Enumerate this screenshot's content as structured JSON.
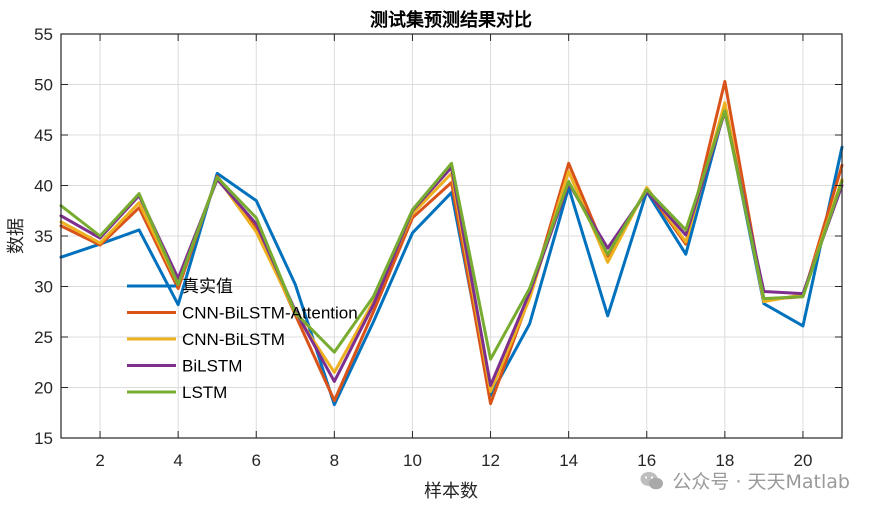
{
  "chart_data": {
    "type": "line",
    "title": "测试集预测结果对比",
    "xlabel": "样本数",
    "ylabel": "数据",
    "xlim": [
      1,
      21
    ],
    "ylim": [
      15,
      55
    ],
    "x_ticks": [
      2,
      4,
      6,
      8,
      10,
      12,
      14,
      16,
      18,
      20
    ],
    "y_ticks": [
      15,
      20,
      25,
      30,
      35,
      40,
      45,
      50,
      55
    ],
    "grid": true,
    "legend_position": "lower-left",
    "x": [
      1,
      2,
      3,
      4,
      5,
      6,
      7,
      8,
      9,
      10,
      11,
      12,
      13,
      14,
      15,
      16,
      17,
      18,
      19,
      20,
      21
    ],
    "series": [
      {
        "name": "真实值",
        "color": "#0072BD",
        "values": [
          32.9,
          34.2,
          35.6,
          28.2,
          41.2,
          38.5,
          30.2,
          18.3,
          26.5,
          35.3,
          39.3,
          19.2,
          26.3,
          39.8,
          27.1,
          39.4,
          33.2,
          47.6,
          28.3,
          26.1,
          43.8
        ]
      },
      {
        "name": "CNN-BiLSTM-Attention",
        "color": "#D95319",
        "values": [
          36.0,
          34.1,
          37.8,
          29.8,
          40.9,
          35.8,
          27.2,
          18.7,
          27.5,
          36.8,
          40.3,
          18.4,
          29.0,
          42.2,
          33.0,
          39.6,
          34.2,
          50.3,
          28.7,
          29.0,
          42.0
        ]
      },
      {
        "name": "CNN-BiLSTM",
        "color": "#EDB120",
        "values": [
          36.4,
          34.3,
          38.3,
          30.2,
          40.8,
          35.4,
          27.4,
          21.5,
          28.5,
          37.2,
          41.2,
          19.6,
          28.8,
          41.4,
          32.4,
          39.8,
          34.4,
          48.2,
          28.5,
          29.2,
          40.6
        ]
      },
      {
        "name": "BiLSTM",
        "color": "#7E2F8E",
        "values": [
          37.0,
          34.8,
          39.0,
          30.8,
          40.6,
          36.2,
          27.6,
          20.6,
          28.2,
          37.5,
          41.8,
          20.2,
          29.4,
          40.2,
          33.8,
          39.4,
          35.1,
          47.3,
          29.5,
          29.3,
          40.0
        ]
      },
      {
        "name": "LSTM",
        "color": "#77AC30",
        "values": [
          38.0,
          35.0,
          39.2,
          30.2,
          40.8,
          36.8,
          27.4,
          23.5,
          29.0,
          37.6,
          42.2,
          22.8,
          29.8,
          40.4,
          33.2,
          39.6,
          35.6,
          47.4,
          28.8,
          29.0,
          40.4
        ]
      }
    ]
  },
  "watermark": {
    "icon": "wechat-icon",
    "text": "公众号 · 天天Matlab"
  }
}
